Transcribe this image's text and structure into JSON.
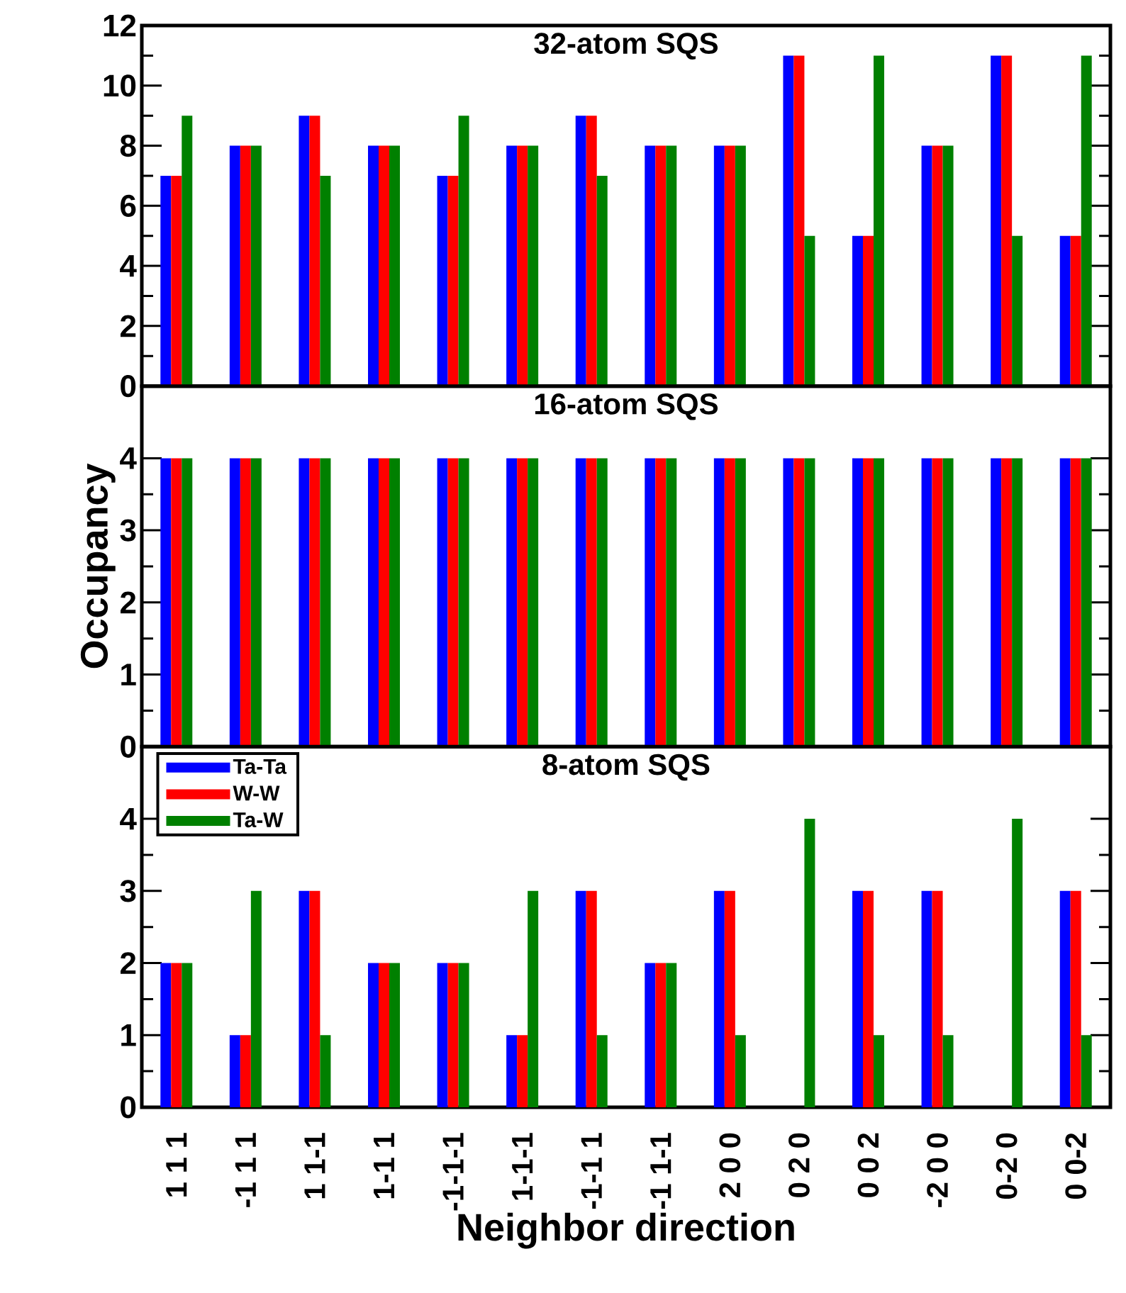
{
  "chart_data": [
    {
      "type": "bar",
      "title": "32-atom SQS",
      "categories": [
        null,
        null,
        null,
        null,
        null,
        null,
        null,
        null,
        null,
        null,
        null,
        null,
        null,
        null
      ],
      "series": [
        {
          "color": "#0000ff",
          "values": [
            7,
            8,
            9,
            8,
            7,
            8,
            9,
            8,
            8,
            11,
            5,
            8,
            11,
            5
          ]
        },
        {
          "color": "#ff0000",
          "values": [
            7,
            8,
            9,
            8,
            7,
            8,
            9,
            8,
            8,
            11,
            5,
            8,
            11,
            5
          ]
        },
        {
          "color": "#008000",
          "values": [
            9,
            8,
            7,
            8,
            9,
            8,
            7,
            8,
            8,
            5,
            11,
            8,
            5,
            11
          ]
        }
      ],
      "ylim": [
        0,
        12
      ],
      "yticks": [
        0,
        2,
        4,
        6,
        8,
        10,
        12
      ],
      "tick_labels": "y"
    },
    {
      "type": "bar",
      "title": "16-atom SQS",
      "ylabel": "Occupancy",
      "categories": [
        null,
        null,
        null,
        null,
        null,
        null,
        null,
        null,
        null,
        null,
        null,
        null,
        null,
        null
      ],
      "series": [
        {
          "color": "#0000ff",
          "values": [
            4,
            4,
            4,
            4,
            4,
            4,
            4,
            4,
            4,
            4,
            4,
            4,
            4,
            4
          ]
        },
        {
          "color": "#ff0000",
          "values": [
            4,
            4,
            4,
            4,
            4,
            4,
            4,
            4,
            4,
            4,
            4,
            4,
            4,
            4
          ]
        },
        {
          "color": "#008000",
          "values": [
            4,
            4,
            4,
            4,
            4,
            4,
            4,
            4,
            4,
            4,
            4,
            4,
            4,
            4
          ]
        }
      ],
      "ylim": [
        0,
        5
      ],
      "yticks": [
        0,
        1,
        2,
        3,
        4
      ],
      "tick_labels": "y"
    },
    {
      "type": "bar",
      "title": "8-atom SQS",
      "xlabel": "Neighbor direction",
      "categories": [
        "1 1 1",
        "-1 1 1",
        "1 1-1",
        "1-1 1",
        "-1-1-1",
        "1-1-1",
        "-1-1 1",
        "-1 1-1",
        "2 0 0",
        "0 2 0",
        "0 0 2",
        "-2 0 0",
        "0-2 0",
        "0 0-2"
      ],
      "series": [
        {
          "name": "Ta-Ta",
          "color": "#0000ff",
          "values": [
            2,
            1,
            3,
            2,
            2,
            1,
            3,
            2,
            3,
            0,
            3,
            3,
            0,
            3
          ]
        },
        {
          "name": "W-W",
          "color": "#ff0000",
          "values": [
            2,
            1,
            3,
            2,
            2,
            1,
            3,
            2,
            3,
            0,
            3,
            3,
            0,
            3
          ]
        },
        {
          "name": "Ta-W",
          "color": "#008000",
          "values": [
            2,
            3,
            1,
            2,
            2,
            3,
            1,
            2,
            1,
            4,
            1,
            1,
            4,
            1
          ]
        }
      ],
      "ylim": [
        0,
        5
      ],
      "yticks": [
        0,
        1,
        2,
        3,
        4
      ],
      "legend": "top left"
    }
  ]
}
